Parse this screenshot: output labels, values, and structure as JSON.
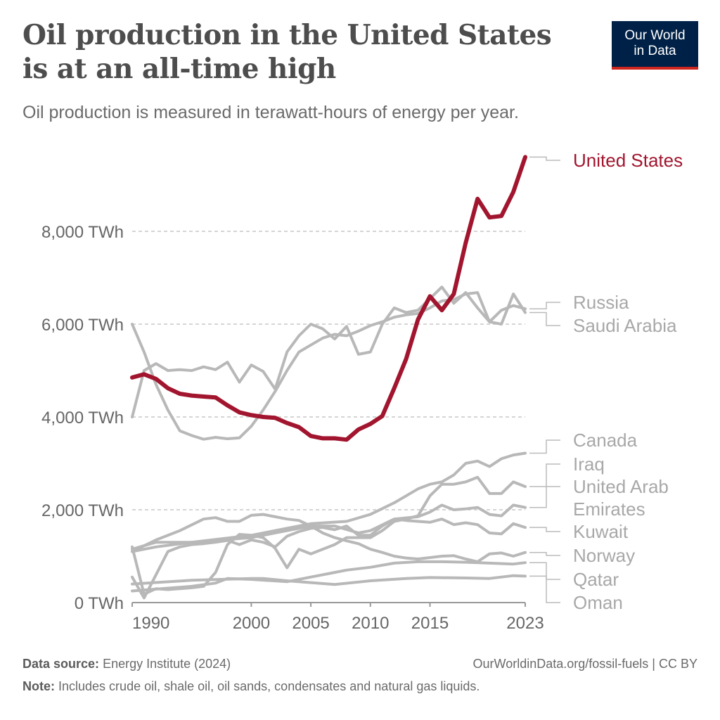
{
  "title": "Oil production in the United States is at an all-time high",
  "subtitle": "Oil production is measured in terawatt-hours of energy per year.",
  "logo": {
    "line1": "Our World",
    "line2": "in Data",
    "bg": "#002147",
    "accent": "#ce261e"
  },
  "footer": {
    "source_label": "Data source:",
    "source": "Energy Institute (2024)",
    "url": "OurWorldinData.org/fossil-fuels | CC BY",
    "note_label": "Note:",
    "note": "Includes crude oil, shale oil, oil sands, condensates and natural gas liquids."
  },
  "chart_data": {
    "type": "line",
    "title": "Oil production in the United States is at an all-time high",
    "subtitle": "Oil production is measured in terawatt-hours of energy per year.",
    "xlim": [
      1990,
      2023
    ],
    "ylim": [
      0,
      9600
    ],
    "x_ticks": [
      "1990",
      "2000",
      "2005",
      "2010",
      "2015",
      "2023"
    ],
    "y_ticks": [
      {
        "value": 0,
        "label": "0 TWh"
      },
      {
        "value": 2000,
        "label": "2,000 TWh"
      },
      {
        "value": 4000,
        "label": "4,000 TWh"
      },
      {
        "value": 6000,
        "label": "6,000 TWh"
      },
      {
        "value": 8000,
        "label": "8,000 TWh"
      }
    ],
    "grid": "horizontal dashed",
    "highlight_color": "#a2152e",
    "muted_color": "#b8b8b8",
    "series": [
      {
        "name": "Russia",
        "label_lines": [
          "Russia"
        ],
        "points": [
          [
            1990,
            6000
          ],
          [
            1991,
            5400
          ],
          [
            1992,
            4700
          ],
          [
            1993,
            4150
          ],
          [
            1994,
            3700
          ],
          [
            1995,
            3600
          ],
          [
            1996,
            3520
          ],
          [
            1997,
            3560
          ],
          [
            1998,
            3530
          ],
          [
            1999,
            3550
          ],
          [
            2000,
            3800
          ],
          [
            2001,
            4150
          ],
          [
            2002,
            4550
          ],
          [
            2003,
            5000
          ],
          [
            2004,
            5400
          ],
          [
            2005,
            5550
          ],
          [
            2006,
            5700
          ],
          [
            2007,
            5780
          ],
          [
            2008,
            5750
          ],
          [
            2009,
            5850
          ],
          [
            2010,
            5970
          ],
          [
            2011,
            6050
          ],
          [
            2012,
            6150
          ],
          [
            2013,
            6200
          ],
          [
            2014,
            6230
          ],
          [
            2015,
            6350
          ],
          [
            2016,
            6500
          ],
          [
            2017,
            6530
          ],
          [
            2018,
            6650
          ],
          [
            2019,
            6680
          ],
          [
            2020,
            6050
          ],
          [
            2021,
            6300
          ],
          [
            2022,
            6400
          ],
          [
            2023,
            6330
          ]
        ]
      },
      {
        "name": "Saudi Arabia",
        "label_lines": [
          "Saudi Arabia"
        ],
        "points": [
          [
            1990,
            4000
          ],
          [
            1991,
            5000
          ],
          [
            1992,
            5150
          ],
          [
            1993,
            5000
          ],
          [
            1994,
            5020
          ],
          [
            1995,
            5000
          ],
          [
            1996,
            5080
          ],
          [
            1997,
            5020
          ],
          [
            1998,
            5180
          ],
          [
            1999,
            4750
          ],
          [
            2000,
            5120
          ],
          [
            2001,
            4980
          ],
          [
            2002,
            4600
          ],
          [
            2003,
            5400
          ],
          [
            2004,
            5750
          ],
          [
            2005,
            6000
          ],
          [
            2006,
            5900
          ],
          [
            2007,
            5680
          ],
          [
            2008,
            5950
          ],
          [
            2009,
            5350
          ],
          [
            2010,
            5400
          ],
          [
            2011,
            6000
          ],
          [
            2012,
            6350
          ],
          [
            2013,
            6250
          ],
          [
            2014,
            6300
          ],
          [
            2015,
            6550
          ],
          [
            2016,
            6800
          ],
          [
            2017,
            6450
          ],
          [
            2018,
            6680
          ],
          [
            2019,
            6350
          ],
          [
            2020,
            6050
          ],
          [
            2021,
            6000
          ],
          [
            2022,
            6650
          ],
          [
            2023,
            6250
          ]
        ]
      },
      {
        "name": "Canada",
        "label_lines": [
          "Canada"
        ],
        "points": [
          [
            1990,
            1100
          ],
          [
            1992,
            1200
          ],
          [
            1995,
            1300
          ],
          [
            2000,
            1450
          ],
          [
            2003,
            1600
          ],
          [
            2005,
            1700
          ],
          [
            2008,
            1750
          ],
          [
            2010,
            1900
          ],
          [
            2012,
            2150
          ],
          [
            2014,
            2450
          ],
          [
            2015,
            2550
          ],
          [
            2016,
            2600
          ],
          [
            2017,
            2750
          ],
          [
            2018,
            3000
          ],
          [
            2019,
            3050
          ],
          [
            2020,
            2930
          ],
          [
            2021,
            3100
          ],
          [
            2022,
            3180
          ],
          [
            2023,
            3220
          ]
        ]
      },
      {
        "name": "Iraq",
        "label_lines": [
          "Iraq"
        ],
        "points": [
          [
            1990,
            1200
          ],
          [
            1991,
            180
          ],
          [
            1992,
            300
          ],
          [
            1993,
            280
          ],
          [
            1994,
            300
          ],
          [
            1995,
            320
          ],
          [
            1996,
            350
          ],
          [
            1997,
            650
          ],
          [
            1998,
            1250
          ],
          [
            1999,
            1470
          ],
          [
            2000,
            1450
          ],
          [
            2001,
            1400
          ],
          [
            2002,
            1170
          ],
          [
            2003,
            750
          ],
          [
            2004,
            1150
          ],
          [
            2005,
            1050
          ],
          [
            2006,
            1150
          ],
          [
            2007,
            1250
          ],
          [
            2008,
            1400
          ],
          [
            2009,
            1400
          ],
          [
            2010,
            1400
          ],
          [
            2011,
            1550
          ],
          [
            2012,
            1750
          ],
          [
            2013,
            1800
          ],
          [
            2014,
            1870
          ],
          [
            2015,
            2300
          ],
          [
            2016,
            2550
          ],
          [
            2017,
            2550
          ],
          [
            2018,
            2600
          ],
          [
            2019,
            2700
          ],
          [
            2020,
            2350
          ],
          [
            2021,
            2350
          ],
          [
            2022,
            2600
          ],
          [
            2023,
            2500
          ]
        ]
      },
      {
        "name": "United Arab Emirates",
        "label_lines": [
          "United Arab",
          "Emirates"
        ],
        "points": [
          [
            1990,
            1150
          ],
          [
            1992,
            1300
          ],
          [
            1995,
            1300
          ],
          [
            2000,
            1400
          ],
          [
            2003,
            1550
          ],
          [
            2005,
            1650
          ],
          [
            2007,
            1650
          ],
          [
            2009,
            1500
          ],
          [
            2010,
            1550
          ],
          [
            2012,
            1800
          ],
          [
            2014,
            1850
          ],
          [
            2015,
            1950
          ],
          [
            2016,
            2100
          ],
          [
            2017,
            2000
          ],
          [
            2018,
            2020
          ],
          [
            2019,
            2050
          ],
          [
            2020,
            1900
          ],
          [
            2021,
            1870
          ],
          [
            2022,
            2100
          ],
          [
            2023,
            2050
          ]
        ]
      },
      {
        "name": "Kuwait",
        "label_lines": [
          "Kuwait"
        ],
        "points": [
          [
            1990,
            550
          ],
          [
            1991,
            100
          ],
          [
            1992,
            600
          ],
          [
            1993,
            1100
          ],
          [
            1994,
            1200
          ],
          [
            1995,
            1250
          ],
          [
            1996,
            1270
          ],
          [
            1997,
            1300
          ],
          [
            1998,
            1340
          ],
          [
            1999,
            1250
          ],
          [
            2000,
            1350
          ],
          [
            2001,
            1300
          ],
          [
            2002,
            1200
          ],
          [
            2003,
            1430
          ],
          [
            2004,
            1530
          ],
          [
            2005,
            1600
          ],
          [
            2006,
            1620
          ],
          [
            2007,
            1570
          ],
          [
            2008,
            1650
          ],
          [
            2009,
            1450
          ],
          [
            2010,
            1450
          ],
          [
            2011,
            1650
          ],
          [
            2012,
            1800
          ],
          [
            2013,
            1770
          ],
          [
            2014,
            1750
          ],
          [
            2015,
            1730
          ],
          [
            2016,
            1800
          ],
          [
            2017,
            1680
          ],
          [
            2018,
            1720
          ],
          [
            2019,
            1680
          ],
          [
            2020,
            1500
          ],
          [
            2021,
            1480
          ],
          [
            2022,
            1700
          ],
          [
            2023,
            1620
          ]
        ]
      },
      {
        "name": "Norway",
        "label_lines": [
          "Norway"
        ],
        "points": [
          [
            1990,
            1100
          ],
          [
            1992,
            1350
          ],
          [
            1994,
            1550
          ],
          [
            1996,
            1800
          ],
          [
            1997,
            1830
          ],
          [
            1998,
            1750
          ],
          [
            1999,
            1750
          ],
          [
            2000,
            1880
          ],
          [
            2001,
            1900
          ],
          [
            2002,
            1850
          ],
          [
            2003,
            1800
          ],
          [
            2004,
            1770
          ],
          [
            2005,
            1650
          ],
          [
            2006,
            1500
          ],
          [
            2007,
            1400
          ],
          [
            2008,
            1330
          ],
          [
            2009,
            1270
          ],
          [
            2010,
            1150
          ],
          [
            2011,
            1080
          ],
          [
            2012,
            1000
          ],
          [
            2013,
            960
          ],
          [
            2014,
            940
          ],
          [
            2015,
            970
          ],
          [
            2016,
            1000
          ],
          [
            2017,
            1010
          ],
          [
            2018,
            940
          ],
          [
            2019,
            880
          ],
          [
            2020,
            1050
          ],
          [
            2021,
            1070
          ],
          [
            2022,
            1000
          ],
          [
            2023,
            1080
          ]
        ]
      },
      {
        "name": "Qatar",
        "label_lines": [
          "Qatar"
        ],
        "points": [
          [
            1990,
            250
          ],
          [
            1995,
            350
          ],
          [
            1997,
            420
          ],
          [
            1998,
            520
          ],
          [
            2000,
            500
          ],
          [
            2003,
            450
          ],
          [
            2005,
            550
          ],
          [
            2007,
            650
          ],
          [
            2008,
            700
          ],
          [
            2010,
            760
          ],
          [
            2012,
            850
          ],
          [
            2014,
            880
          ],
          [
            2016,
            880
          ],
          [
            2018,
            870
          ],
          [
            2020,
            850
          ],
          [
            2022,
            830
          ],
          [
            2023,
            860
          ]
        ]
      },
      {
        "name": "Oman",
        "label_lines": [
          "Oman"
        ],
        "points": [
          [
            1990,
            400
          ],
          [
            1995,
            480
          ],
          [
            2000,
            520
          ],
          [
            2001,
            520
          ],
          [
            2003,
            470
          ],
          [
            2005,
            430
          ],
          [
            2007,
            390
          ],
          [
            2010,
            470
          ],
          [
            2013,
            520
          ],
          [
            2015,
            540
          ],
          [
            2018,
            530
          ],
          [
            2020,
            520
          ],
          [
            2022,
            580
          ],
          [
            2023,
            570
          ]
        ]
      },
      {
        "name": "United States",
        "label_lines": [
          "United States"
        ],
        "highlight": true,
        "points": [
          [
            1990,
            4850
          ],
          [
            1991,
            4920
          ],
          [
            1992,
            4820
          ],
          [
            1993,
            4620
          ],
          [
            1994,
            4500
          ],
          [
            1995,
            4460
          ],
          [
            1996,
            4440
          ],
          [
            1997,
            4420
          ],
          [
            1998,
            4250
          ],
          [
            1999,
            4100
          ],
          [
            2000,
            4040
          ],
          [
            2001,
            4000
          ],
          [
            2002,
            3980
          ],
          [
            2003,
            3870
          ],
          [
            2004,
            3780
          ],
          [
            2005,
            3590
          ],
          [
            2006,
            3540
          ],
          [
            2007,
            3540
          ],
          [
            2008,
            3510
          ],
          [
            2009,
            3730
          ],
          [
            2010,
            3850
          ],
          [
            2011,
            4020
          ],
          [
            2012,
            4620
          ],
          [
            2013,
            5250
          ],
          [
            2014,
            6100
          ],
          [
            2015,
            6600
          ],
          [
            2016,
            6300
          ],
          [
            2017,
            6650
          ],
          [
            2018,
            7750
          ],
          [
            2019,
            8700
          ],
          [
            2020,
            8300
          ],
          [
            2021,
            8330
          ],
          [
            2022,
            8850
          ],
          [
            2023,
            9600
          ]
        ]
      }
    ]
  }
}
